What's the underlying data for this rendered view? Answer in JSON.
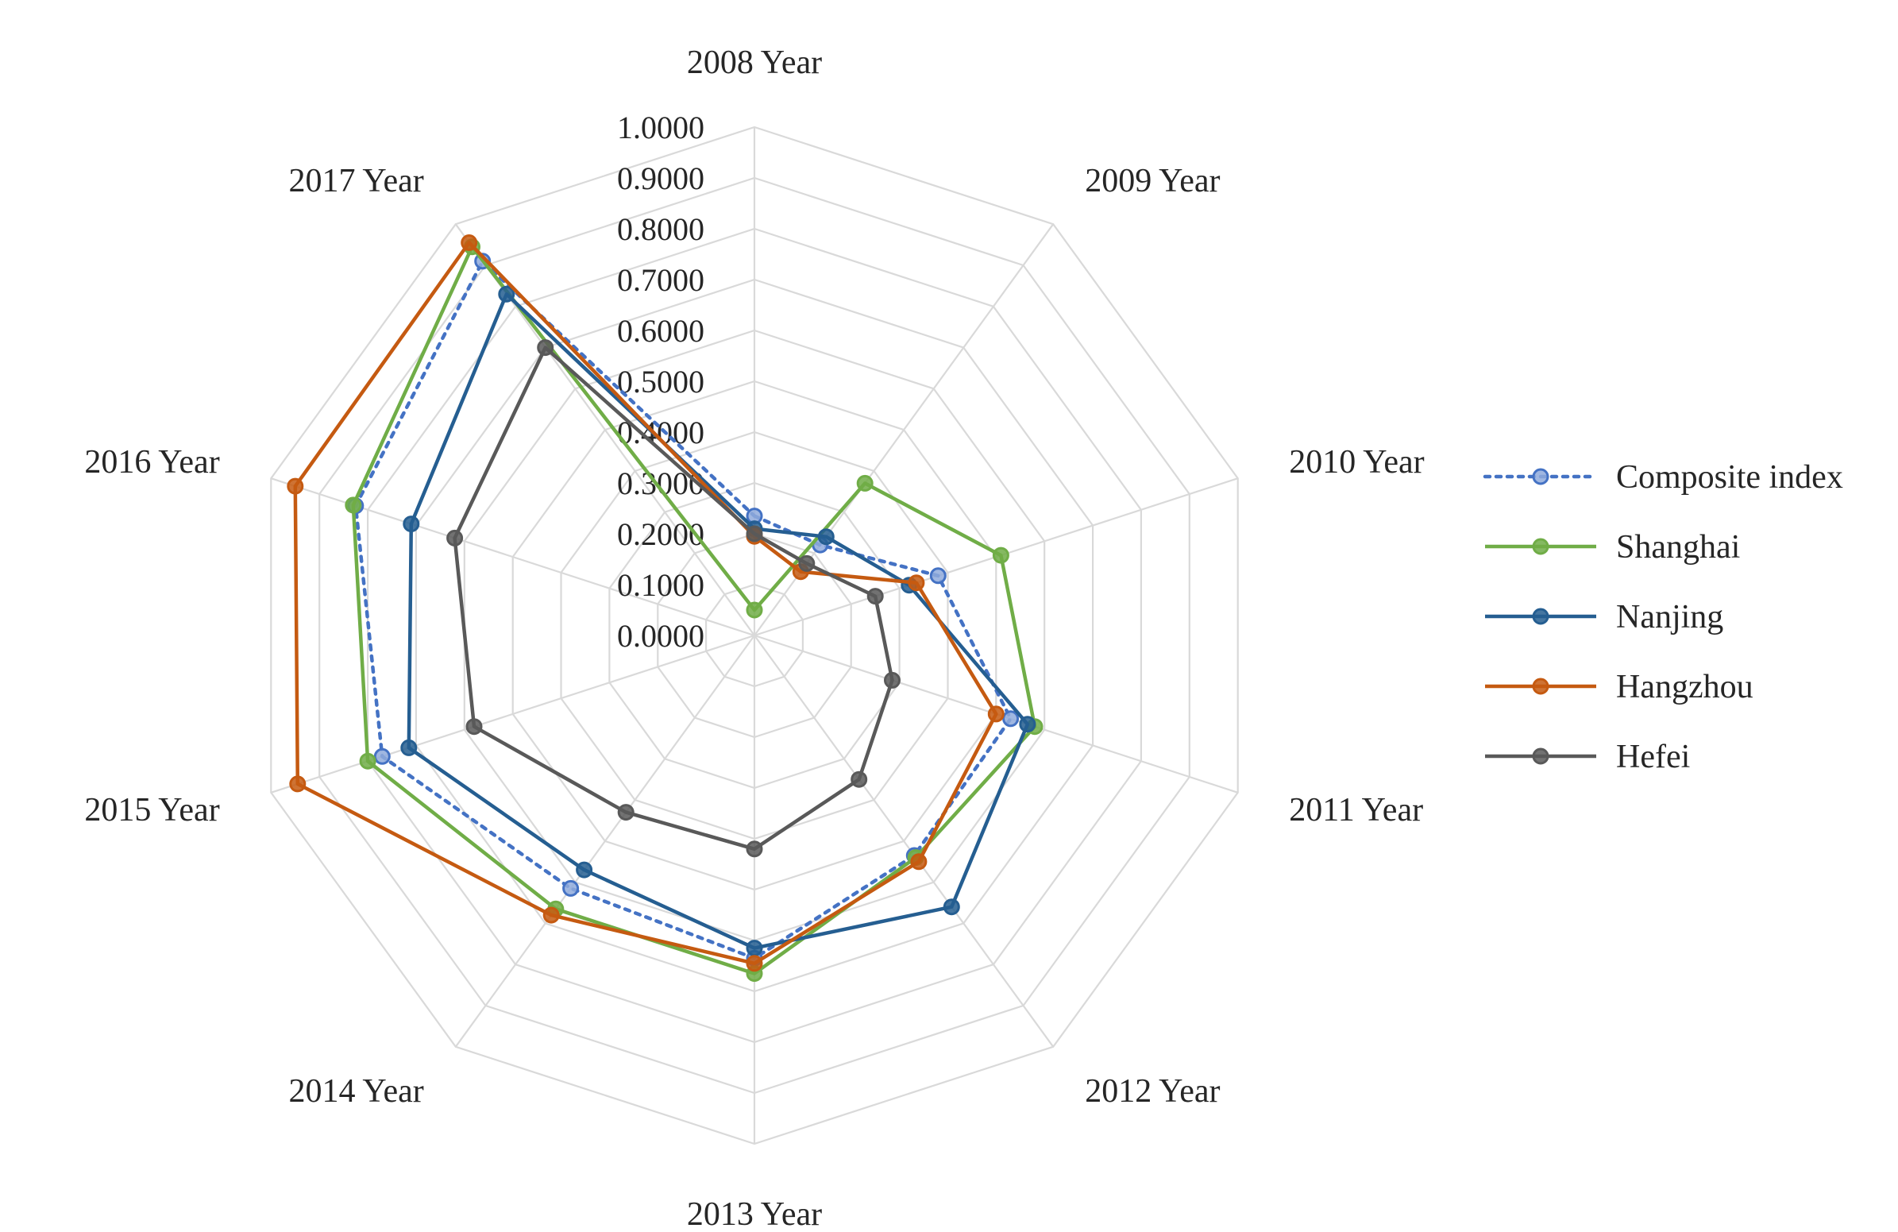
{
  "chart_data": {
    "type": "radar",
    "title": "",
    "categories": [
      "2008 Year",
      "2009 Year",
      "2010 Year",
      "2011 Year",
      "2012 Year",
      "2013 Year",
      "2014 Year",
      "2015 Year",
      "2016 Year",
      "2017 Year"
    ],
    "rlim": [
      0,
      1
    ],
    "ticks": [
      "0.0000",
      "0.1000",
      "0.2000",
      "0.3000",
      "0.4000",
      "0.5000",
      "0.6000",
      "0.7000",
      "0.8000",
      "0.9000",
      "1.0000"
    ],
    "grid": true,
    "legend_position": "right",
    "series": [
      {
        "name": "Composite index",
        "color": "#4472c4",
        "style": "dotted",
        "values": [
          0.235,
          0.22,
          0.38,
          0.53,
          0.535,
          0.635,
          0.615,
          0.77,
          0.825,
          0.91
        ]
      },
      {
        "name": "Shanghai",
        "color": "#70ad47",
        "style": "solid",
        "values": [
          0.05,
          0.37,
          0.51,
          0.58,
          0.54,
          0.665,
          0.665,
          0.8,
          0.83,
          0.945
        ]
      },
      {
        "name": "Nanjing",
        "color": "#255e91",
        "style": "solid",
        "values": [
          0.21,
          0.24,
          0.32,
          0.565,
          0.66,
          0.615,
          0.57,
          0.715,
          0.71,
          0.83
        ]
      },
      {
        "name": "Hangzhou",
        "color": "#c55a11",
        "style": "solid",
        "values": [
          0.195,
          0.155,
          0.335,
          0.5,
          0.55,
          0.645,
          0.68,
          0.945,
          0.95,
          0.955
        ]
      },
      {
        "name": "Hefei",
        "color": "#595959",
        "style": "solid",
        "values": [
          0.2,
          0.175,
          0.25,
          0.285,
          0.35,
          0.42,
          0.43,
          0.58,
          0.62,
          0.7
        ]
      }
    ]
  }
}
